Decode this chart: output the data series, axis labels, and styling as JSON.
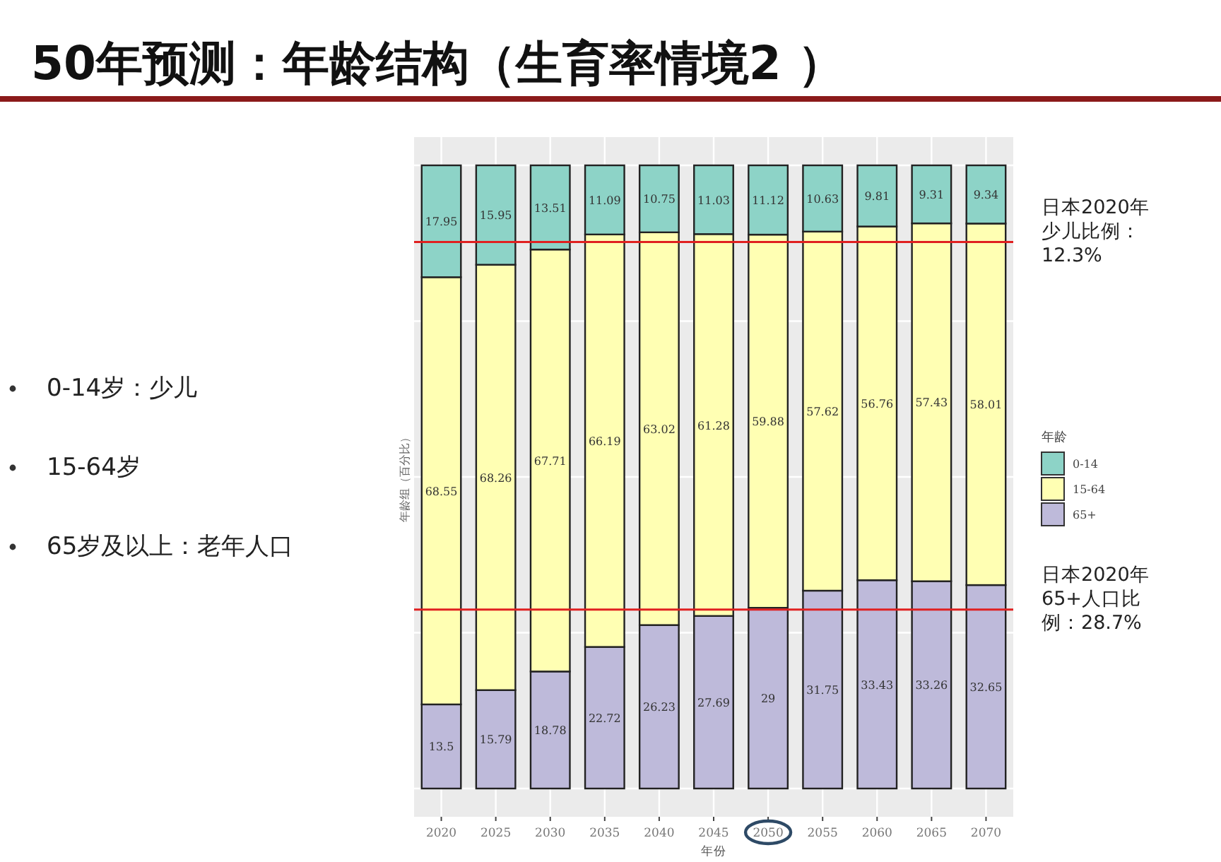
{
  "chart_data": {
    "type": "bar",
    "title": "50年预测：年龄结构（生育率情境2 ）",
    "xlabel": "年份",
    "ylabel": "年龄组（百分比）",
    "legend_title": "年龄",
    "categories": [
      "2020",
      "2025",
      "2030",
      "2035",
      "2040",
      "2045",
      "2050",
      "2055",
      "2060",
      "2065",
      "2070"
    ],
    "stacked": true,
    "data_labels": true,
    "legend": "right",
    "grid": true,
    "tick_labels": "x",
    "ylim": [
      0,
      100
    ],
    "yticks": [
      0,
      25,
      50,
      75,
      100
    ],
    "series": [
      {
        "name": "65+",
        "color": "#bebada",
        "values": [
          13.5,
          15.79,
          18.78,
          22.72,
          26.23,
          27.69,
          29,
          31.75,
          33.43,
          33.26,
          32.65
        ]
      },
      {
        "name": "15-64",
        "color": "#ffffb3",
        "values": [
          68.55,
          68.26,
          67.71,
          66.19,
          63.02,
          61.28,
          59.88,
          57.62,
          56.76,
          57.43,
          58.01
        ]
      },
      {
        "name": "0-14",
        "color": "#8dd3c7",
        "values": [
          17.95,
          15.95,
          13.51,
          11.09,
          10.75,
          11.03,
          11.12,
          10.63,
          9.81,
          9.31,
          9.34
        ]
      }
    ],
    "ref_lines": [
      {
        "axis": "y",
        "value": 87.7,
        "label": "日本2020年少儿比例：12.3%",
        "color": "#e02020"
      },
      {
        "axis": "y",
        "value": 28.7,
        "label": "日本2020年65+人口比例：28.7%",
        "color": "#e02020"
      }
    ],
    "annotations": [
      "0-14岁：少儿",
      "15-64岁",
      "65岁及以上：老年人口"
    ]
  }
}
